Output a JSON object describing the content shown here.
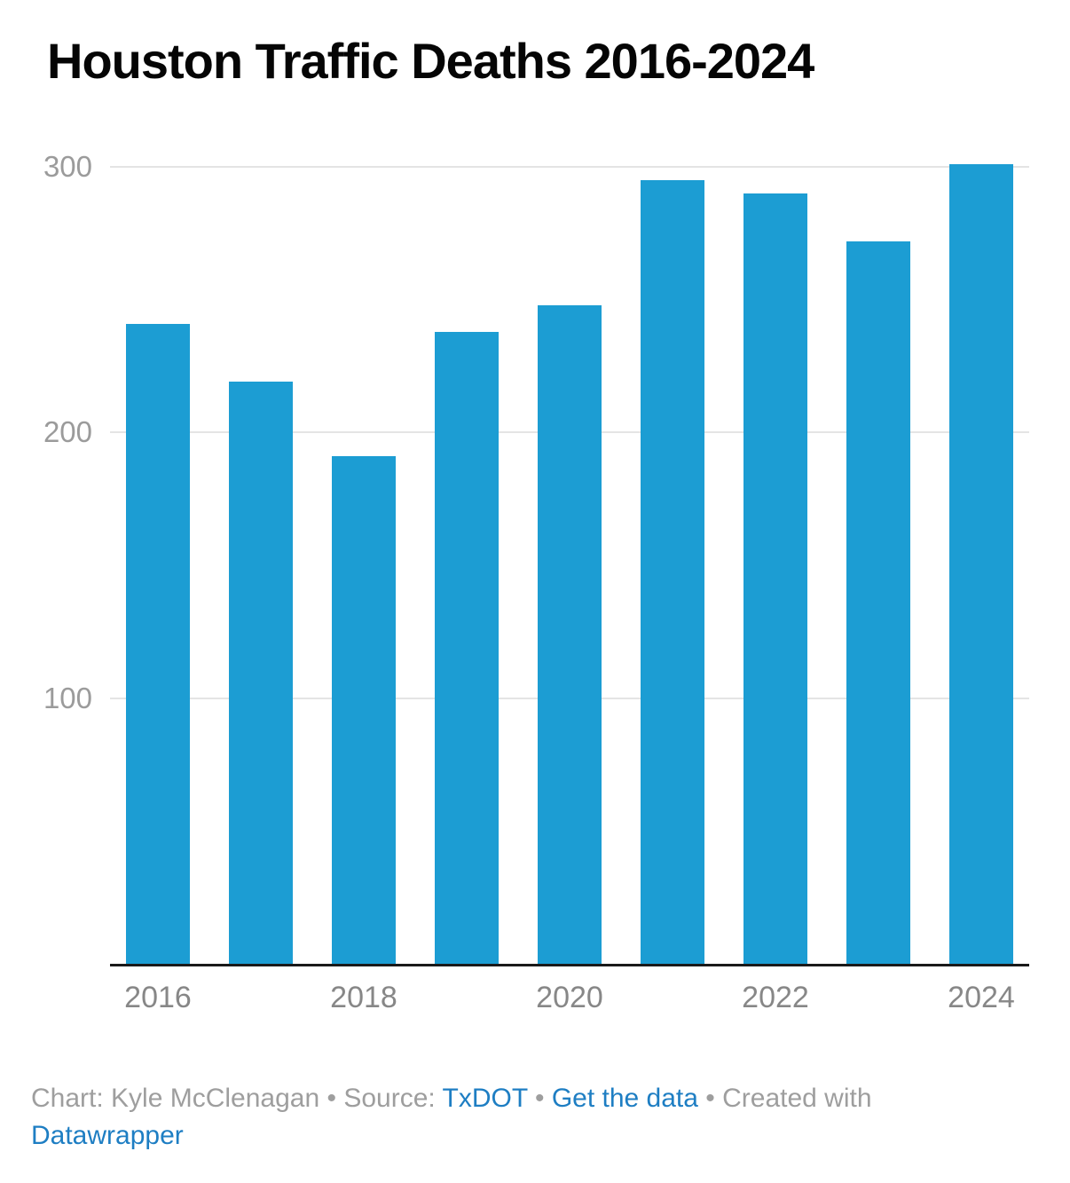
{
  "title": "Houston Traffic Deaths 2016-2024",
  "chart_data": {
    "type": "bar",
    "title": "Houston Traffic Deaths 2016-2024",
    "categories": [
      "2016",
      "2017",
      "2018",
      "2019",
      "2020",
      "2021",
      "2022",
      "2023",
      "2024"
    ],
    "values": [
      241,
      219,
      191,
      238,
      248,
      295,
      290,
      272,
      301
    ],
    "xlabel": "",
    "ylabel": "",
    "ylim": [
      0,
      315
    ],
    "yticks": [
      100,
      200,
      300
    ],
    "ytick_labels": [
      "100",
      "200",
      "300"
    ],
    "x_axis_labels_shown": [
      "2016",
      "2018",
      "2020",
      "2022",
      "2024"
    ],
    "grid": true,
    "legend": "none",
    "bar_color": "#1c9dd3"
  },
  "colors": {
    "bar": "#1c9dd3",
    "link": "#1e7ec3",
    "gridline": "#e4e4e4",
    "axis_line": "#1a1a1a",
    "y_label": "#9b9b9b",
    "x_label": "#878787",
    "footer_text": "#9e9e9e",
    "title_text": "#050505"
  },
  "footer": {
    "credit": "Chart: Kyle McClenagan • Source: ",
    "source_link": "TxDOT",
    "sep": " • ",
    "get_data_link": "Get the data",
    "created_with": " • Created with ",
    "datawrapper_link": "Datawrapper"
  }
}
